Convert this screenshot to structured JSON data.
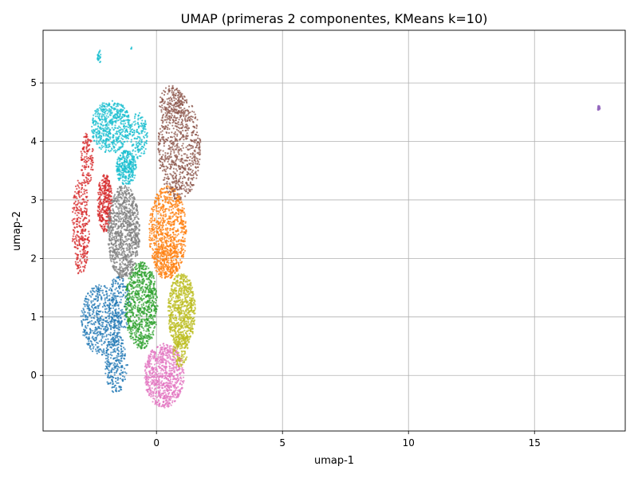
{
  "chart_data": {
    "type": "scatter",
    "title": "UMAP (primeras 2 componentes, KMeans k=10)",
    "xlabel": "umap-1",
    "ylabel": "umap-2",
    "xlim": [
      -4.5,
      18.6
    ],
    "ylim": [
      -0.95,
      5.9
    ],
    "xticks": [
      0,
      5,
      10,
      15
    ],
    "yticks": [
      0,
      1,
      2,
      3,
      4,
      5
    ],
    "grid": true,
    "legend": "none",
    "clusters": [
      {
        "id": 0,
        "color": "#1f77b4",
        "regions": [
          {
            "cx": -2.2,
            "cy": 0.95,
            "rx": 0.8,
            "ry": 0.6,
            "n": 500
          },
          {
            "cx": -1.6,
            "cy": 0.2,
            "rx": 0.45,
            "ry": 0.5,
            "n": 250
          },
          {
            "cx": -1.5,
            "cy": 1.2,
            "rx": 0.45,
            "ry": 0.5,
            "n": 200
          }
        ]
      },
      {
        "id": 1,
        "color": "#ff7f0e",
        "regions": [
          {
            "cx": 0.45,
            "cy": 2.45,
            "rx": 0.75,
            "ry": 0.8,
            "n": 850
          },
          {
            "cx": 0.4,
            "cy": 1.95,
            "rx": 0.5,
            "ry": 0.3,
            "n": 150
          }
        ]
      },
      {
        "id": 2,
        "color": "#2ca02c",
        "regions": [
          {
            "cx": -0.6,
            "cy": 1.2,
            "rx": 0.65,
            "ry": 0.75,
            "n": 800
          }
        ]
      },
      {
        "id": 3,
        "color": "#d62728",
        "regions": [
          {
            "cx": -3.0,
            "cy": 2.55,
            "rx": 0.35,
            "ry": 0.85,
            "n": 320
          },
          {
            "cx": -2.75,
            "cy": 3.7,
            "rx": 0.25,
            "ry": 0.45,
            "n": 130
          },
          {
            "cx": -2.05,
            "cy": 2.95,
            "rx": 0.3,
            "ry": 0.5,
            "n": 320
          }
        ]
      },
      {
        "id": 4,
        "color": "#9467bd",
        "regions": [
          {
            "cx": 17.55,
            "cy": 4.57,
            "rx": 0.05,
            "ry": 0.04,
            "n": 25
          }
        ]
      },
      {
        "id": 5,
        "color": "#8c564b",
        "regions": [
          {
            "cx": 0.9,
            "cy": 3.9,
            "rx": 0.85,
            "ry": 0.9,
            "n": 750
          },
          {
            "cx": 0.6,
            "cy": 4.65,
            "rx": 0.5,
            "ry": 0.3,
            "n": 150
          }
        ]
      },
      {
        "id": 6,
        "color": "#e377c2",
        "regions": [
          {
            "cx": 0.3,
            "cy": 0.0,
            "rx": 0.8,
            "ry": 0.55,
            "n": 800
          }
        ]
      },
      {
        "id": 7,
        "color": "#7f7f7f",
        "regions": [
          {
            "cx": -1.3,
            "cy": 2.45,
            "rx": 0.65,
            "ry": 0.8,
            "n": 950
          }
        ]
      },
      {
        "id": 8,
        "color": "#bcbd22",
        "regions": [
          {
            "cx": 1.0,
            "cy": 1.1,
            "rx": 0.55,
            "ry": 0.65,
            "n": 750
          },
          {
            "cx": 0.95,
            "cy": 0.45,
            "rx": 0.3,
            "ry": 0.3,
            "n": 120
          }
        ]
      },
      {
        "id": 9,
        "color": "#17becf",
        "regions": [
          {
            "cx": -1.8,
            "cy": 4.25,
            "rx": 0.8,
            "ry": 0.45,
            "n": 550
          },
          {
            "cx": -1.2,
            "cy": 3.55,
            "rx": 0.4,
            "ry": 0.3,
            "n": 300
          },
          {
            "cx": -0.7,
            "cy": 4.1,
            "rx": 0.35,
            "ry": 0.4,
            "n": 150
          },
          {
            "cx": -2.27,
            "cy": 5.42,
            "rx": 0.07,
            "ry": 0.15,
            "n": 25
          },
          {
            "cx": -1.0,
            "cy": 5.6,
            "rx": 0.02,
            "ry": 0.02,
            "n": 3
          }
        ]
      }
    ]
  }
}
